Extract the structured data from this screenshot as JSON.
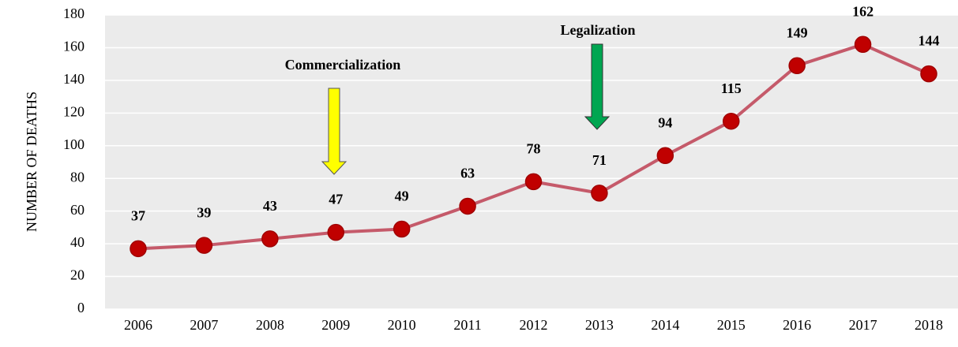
{
  "chart_data": {
    "type": "line",
    "y_label": "NUMBER OF DEATHS",
    "categories": [
      "2006",
      "2007",
      "2008",
      "2009",
      "2010",
      "2011",
      "2012",
      "2013",
      "2014",
      "2015",
      "2016",
      "2017",
      "2018"
    ],
    "series": [
      {
        "name": "Deaths",
        "color": "#c55a6a",
        "marker_color": "#c00000",
        "values": [
          37,
          39,
          43,
          47,
          49,
          63,
          78,
          71,
          94,
          115,
          149,
          162,
          144
        ]
      }
    ],
    "ylim": [
      0,
      180
    ],
    "yticks": [
      0,
      20,
      40,
      60,
      80,
      100,
      120,
      140,
      160,
      180
    ],
    "grid": true,
    "annotations": [
      {
        "text": "Commercialization"
      },
      {
        "text": "Legalization"
      }
    ]
  }
}
